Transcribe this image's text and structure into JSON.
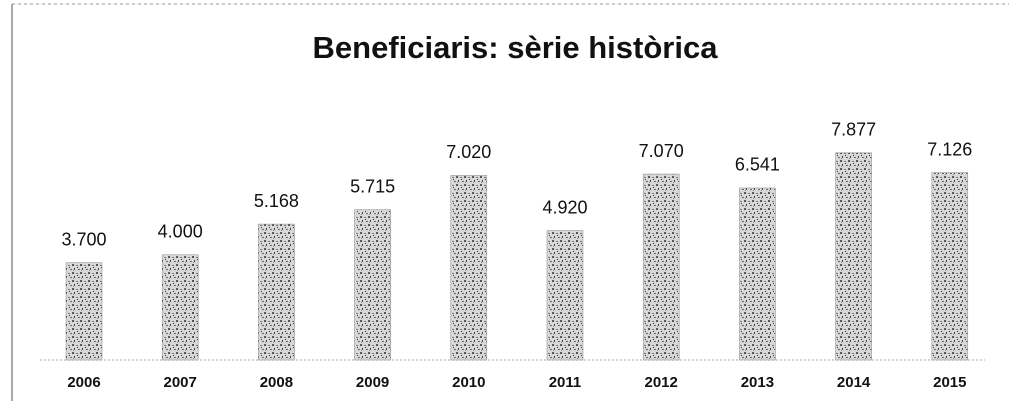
{
  "chart_data": {
    "type": "bar",
    "title": "Beneficiaris: sèrie històrica",
    "categories": [
      "2006",
      "2007",
      "2008",
      "2009",
      "2010",
      "2011",
      "2012",
      "2013",
      "2014",
      "2015"
    ],
    "values": [
      3700,
      4000,
      5168,
      5715,
      7020,
      4920,
      7070,
      6541,
      7877,
      7126
    ],
    "value_labels": [
      "3.700",
      "4.000",
      "5.168",
      "5.715",
      "7.020",
      "4.920",
      "7.070",
      "6.541",
      "7.877",
      "7.126"
    ],
    "color": "#a3a3a3"
  }
}
